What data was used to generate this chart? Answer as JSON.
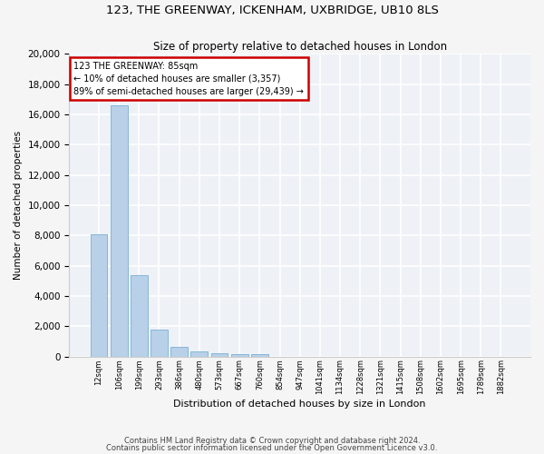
{
  "title1": "123, THE GREENWAY, ICKENHAM, UXBRIDGE, UB10 8LS",
  "title2": "Size of property relative to detached houses in London",
  "xlabel": "Distribution of detached houses by size in London",
  "ylabel": "Number of detached properties",
  "categories": [
    "12sqm",
    "106sqm",
    "199sqm",
    "293sqm",
    "386sqm",
    "480sqm",
    "573sqm",
    "667sqm",
    "760sqm",
    "854sqm",
    "947sqm",
    "1041sqm",
    "1134sqm",
    "1228sqm",
    "1321sqm",
    "1415sqm",
    "1508sqm",
    "1602sqm",
    "1695sqm",
    "1789sqm",
    "1882sqm"
  ],
  "values": [
    8100,
    16600,
    5350,
    1800,
    620,
    330,
    200,
    160,
    140,
    0,
    0,
    0,
    0,
    0,
    0,
    0,
    0,
    0,
    0,
    0,
    0
  ],
  "bar_color": "#b8d0e8",
  "bar_edge_color": "#7aafd4",
  "annotation_line1": "123 THE GREENWAY: 85sqm",
  "annotation_line2": "← 10% of detached houses are smaller (3,357)",
  "annotation_line3": "89% of semi-detached houses are larger (29,439) →",
  "annotation_box_color": "#ffffff",
  "annotation_box_edge": "#cc0000",
  "ylim": [
    0,
    20000
  ],
  "yticks": [
    0,
    2000,
    4000,
    6000,
    8000,
    10000,
    12000,
    14000,
    16000,
    18000,
    20000
  ],
  "footer_line1": "Contains HM Land Registry data © Crown copyright and database right 2024.",
  "footer_line2": "Contains public sector information licensed under the Open Government Licence v3.0.",
  "background_color": "#eef2f7",
  "grid_color": "#ffffff",
  "fig_bg": "#f5f5f5"
}
